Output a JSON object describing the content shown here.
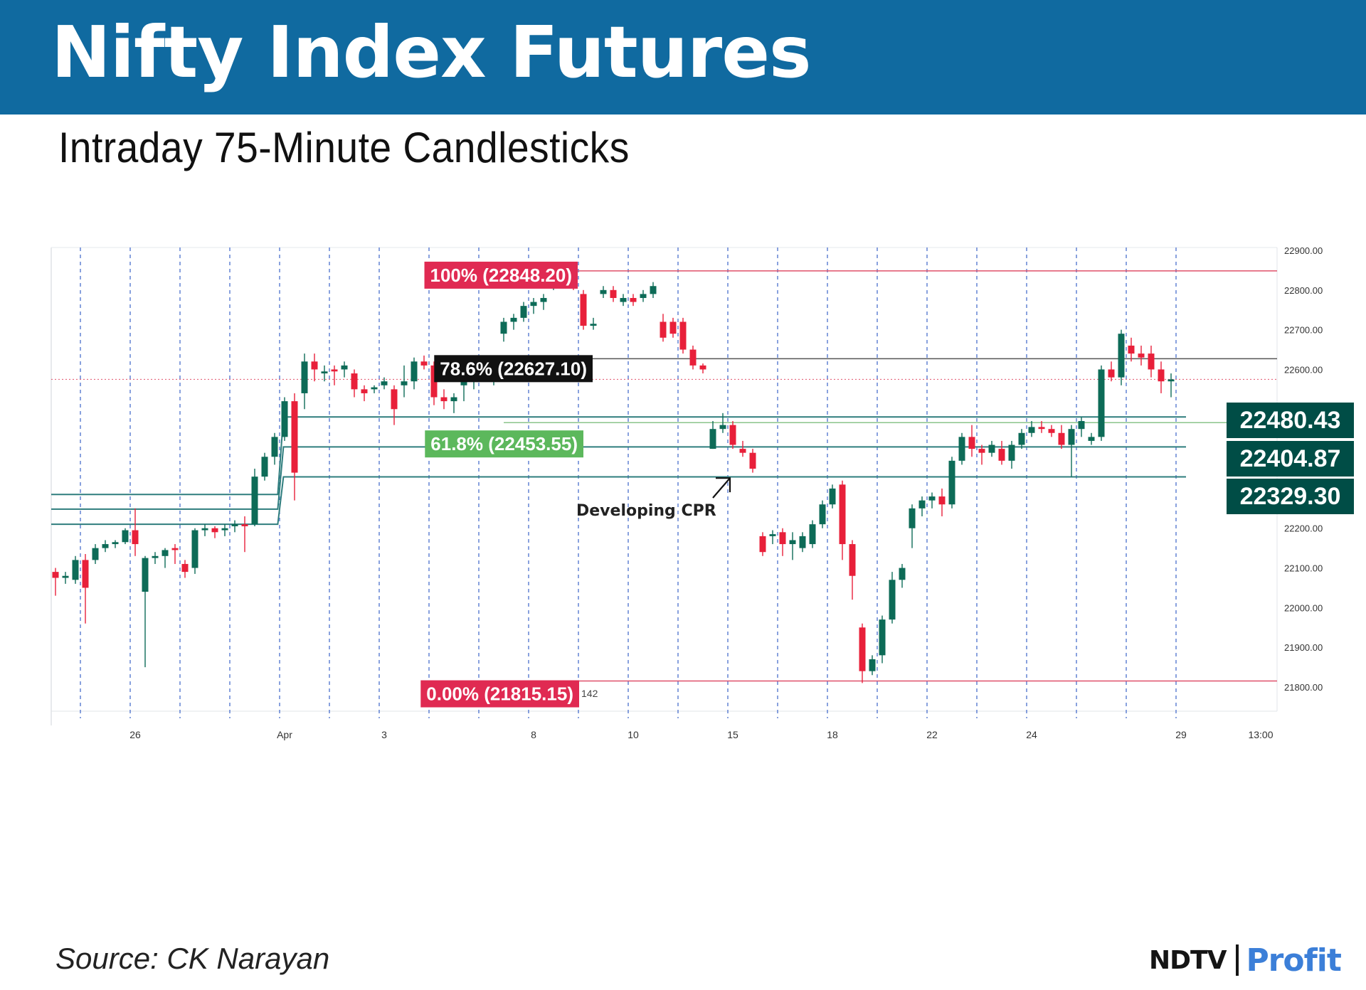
{
  "header": {
    "title": "Nifty Index Futures"
  },
  "subtitle": "Intraday 75-Minute Candlesticks",
  "source": "Source: CK Narayan",
  "brand": {
    "name": "NDTV",
    "product": "Profit"
  },
  "chart_data": {
    "type": "candlestick",
    "title": "Nifty Index Futures",
    "subtitle": "Intraday 75-Minute Candlesticks",
    "ylim": [
      21760,
      22910
    ],
    "y_ticks": [
      22900,
      22800,
      22700,
      22600,
      22500,
      22400,
      22300,
      22200,
      22100,
      22000,
      21900,
      21800
    ],
    "y_tick_labels": [
      "22900.00",
      "22800.00",
      "22700.00",
      "22600.00",
      "",
      "",
      "",
      "22200.00",
      "22100.00",
      "22000.00",
      "21900.00",
      "21800.00"
    ],
    "x_tick_labels": [
      {
        "label": "26",
        "index": 8
      },
      {
        "label": "Apr",
        "index": 23
      },
      {
        "label": "3",
        "index": 33
      },
      {
        "label": "8",
        "index": 48
      },
      {
        "label": "10",
        "index": 58
      },
      {
        "label": "15",
        "index": 68
      },
      {
        "label": "18",
        "index": 78
      },
      {
        "label": "22",
        "index": 88
      },
      {
        "label": "24",
        "index": 98
      },
      {
        "label": "29",
        "index": 113
      },
      {
        "label": "13:00",
        "index": 121
      }
    ],
    "grid": "vertical dashed session separators",
    "session_separators": [
      3,
      8,
      13,
      18,
      23,
      28,
      33,
      38,
      43,
      48,
      53,
      58,
      63,
      68,
      73,
      78,
      83,
      88,
      93,
      98,
      103,
      108,
      113
    ],
    "colors": {
      "up": "#0d6b57",
      "down": "#e8203a",
      "fib_line": "#e0506a",
      "cpr": "#2e7d7d",
      "label_dark": "#004d46"
    },
    "candles": [
      [
        22090,
        22100,
        22030,
        22075
      ],
      [
        22075,
        22090,
        22060,
        22080
      ],
      [
        22070,
        22130,
        22060,
        22120
      ],
      [
        22120,
        22135,
        21960,
        22050
      ],
      [
        22120,
        22160,
        22110,
        22150
      ],
      [
        22150,
        22170,
        22140,
        22160
      ],
      [
        22160,
        22170,
        22150,
        22165
      ],
      [
        22165,
        22200,
        22160,
        22195
      ],
      [
        22195,
        22250,
        22130,
        22160
      ],
      [
        22040,
        22130,
        21850,
        22125
      ],
      [
        22125,
        22140,
        22110,
        22130
      ],
      [
        22130,
        22150,
        22100,
        22145
      ],
      [
        22150,
        22160,
        22110,
        22145
      ],
      [
        22110,
        22120,
        22075,
        22090
      ],
      [
        22100,
        22200,
        22085,
        22195
      ],
      [
        22195,
        22210,
        22180,
        22200
      ],
      [
        22200,
        22205,
        22175,
        22190
      ],
      [
        22195,
        22210,
        22180,
        22200
      ],
      [
        22205,
        22220,
        22190,
        22210
      ],
      [
        22210,
        22230,
        22140,
        22205
      ],
      [
        22210,
        22350,
        22205,
        22330
      ],
      [
        22330,
        22390,
        22320,
        22380
      ],
      [
        22380,
        22440,
        22360,
        22430
      ],
      [
        22430,
        22530,
        22420,
        22520
      ],
      [
        22520,
        22540,
        22270,
        22340
      ],
      [
        22540,
        22640,
        22500,
        22620
      ],
      [
        22620,
        22640,
        22570,
        22600
      ],
      [
        22590,
        22610,
        22570,
        22595
      ],
      [
        22600,
        22610,
        22560,
        22595
      ],
      [
        22600,
        22620,
        22580,
        22610
      ],
      [
        22590,
        22600,
        22530,
        22550
      ],
      [
        22550,
        22560,
        22520,
        22540
      ],
      [
        22550,
        22560,
        22540,
        22555
      ],
      [
        22560,
        22580,
        22550,
        22570
      ],
      [
        22550,
        22560,
        22460,
        22500
      ],
      [
        22560,
        22610,
        22530,
        22570
      ],
      [
        22570,
        22630,
        22550,
        22620
      ],
      [
        22620,
        22635,
        22600,
        22610
      ],
      [
        22610,
        22620,
        22510,
        22530
      ],
      [
        22530,
        22550,
        22500,
        22520
      ],
      [
        22520,
        22540,
        22490,
        22530
      ],
      [
        22560,
        22580,
        22520,
        22570
      ],
      [
        22570,
        22610,
        22550,
        22590
      ],
      [
        22590,
        22610,
        22570,
        22600
      ],
      [
        22600,
        22620,
        22560,
        22610
      ],
      [
        22690,
        22730,
        22670,
        22720
      ],
      [
        22720,
        22740,
        22700,
        22730
      ],
      [
        22730,
        22770,
        22720,
        22760
      ],
      [
        22760,
        22780,
        22740,
        22770
      ],
      [
        22770,
        22790,
        22750,
        22780
      ],
      [
        22820,
        22840,
        22800,
        22830
      ],
      [
        22830,
        22850,
        22810,
        22830
      ],
      [
        22840,
        22850,
        22800,
        22830
      ],
      [
        22790,
        22800,
        22700,
        22710
      ],
      [
        22710,
        22730,
        22700,
        22715
      ],
      [
        22790,
        22810,
        22780,
        22800
      ],
      [
        22800,
        22810,
        22770,
        22780
      ],
      [
        22770,
        22790,
        22760,
        22780
      ],
      [
        22780,
        22790,
        22760,
        22770
      ],
      [
        22780,
        22800,
        22770,
        22790
      ],
      [
        22790,
        22820,
        22780,
        22810
      ],
      [
        22720,
        22740,
        22670,
        22680
      ],
      [
        22720,
        22730,
        22680,
        22690
      ],
      [
        22720,
        22730,
        22640,
        22650
      ],
      [
        22650,
        22660,
        22600,
        22610
      ],
      [
        22610,
        22615,
        22590,
        22600
      ],
      [
        22400,
        22470,
        22400,
        22450
      ],
      [
        22450,
        22490,
        22440,
        22460
      ],
      [
        22460,
        22470,
        22400,
        22410
      ],
      [
        22400,
        22420,
        22380,
        22390
      ],
      [
        22390,
        22400,
        22340,
        22350
      ],
      [
        22180,
        22190,
        22130,
        22140
      ],
      [
        22180,
        22195,
        22160,
        22185
      ],
      [
        22190,
        22200,
        22130,
        22160
      ],
      [
        22160,
        22190,
        22120,
        22170
      ],
      [
        22150,
        22190,
        22140,
        22180
      ],
      [
        22160,
        22220,
        22150,
        22210
      ],
      [
        22210,
        22270,
        22200,
        22260
      ],
      [
        22260,
        22310,
        22250,
        22300
      ],
      [
        22310,
        22320,
        22120,
        22160
      ],
      [
        22160,
        22170,
        22020,
        22080
      ],
      [
        21950,
        21960,
        21810,
        21840
      ],
      [
        21840,
        21880,
        21830,
        21870
      ],
      [
        21880,
        21980,
        21860,
        21970
      ],
      [
        21970,
        22090,
        21960,
        22070
      ],
      [
        22070,
        22110,
        22050,
        22100
      ],
      [
        22200,
        22260,
        22150,
        22250
      ],
      [
        22250,
        22280,
        22230,
        22270
      ],
      [
        22270,
        22290,
        22250,
        22280
      ],
      [
        22280,
        22300,
        22230,
        22260
      ],
      [
        22260,
        22380,
        22250,
        22370
      ],
      [
        22370,
        22440,
        22360,
        22430
      ],
      [
        22430,
        22460,
        22380,
        22400
      ],
      [
        22400,
        22410,
        22360,
        22390
      ],
      [
        22390,
        22420,
        22380,
        22410
      ],
      [
        22400,
        22420,
        22360,
        22370
      ],
      [
        22370,
        22420,
        22350,
        22410
      ],
      [
        22410,
        22450,
        22400,
        22440
      ],
      [
        22440,
        22470,
        22430,
        22455
      ],
      [
        22455,
        22470,
        22440,
        22450
      ],
      [
        22450,
        22460,
        22430,
        22440
      ],
      [
        22440,
        22460,
        22400,
        22410
      ],
      [
        22410,
        22460,
        22330,
        22450
      ],
      [
        22450,
        22480,
        22430,
        22470
      ],
      [
        22420,
        22440,
        22410,
        22430
      ],
      [
        22430,
        22610,
        22420,
        22600
      ],
      [
        22600,
        22620,
        22570,
        22580
      ],
      [
        22580,
        22700,
        22560,
        22690
      ],
      [
        22660,
        22680,
        22620,
        22640
      ],
      [
        22640,
        22660,
        22610,
        22630
      ],
      [
        22640,
        22660,
        22580,
        22600
      ],
      [
        22600,
        22620,
        22540,
        22570
      ],
      [
        22570,
        22590,
        22530,
        22575
      ]
    ],
    "levels": [
      {
        "label": "100% (22848.20)",
        "value": 22848.2,
        "kind": "fib"
      },
      {
        "label": "78.6% (22627.10)",
        "value": 22627.1,
        "kind": "fib"
      },
      {
        "label": "61.8% (22453.55)",
        "value": 22453.55,
        "kind": "fib"
      },
      {
        "label": "0.00% (21815.15)",
        "value": 21815.15,
        "kind": "fib"
      }
    ],
    "cpr_labels": [
      "22480.43",
      "22404.87",
      "22329.30"
    ],
    "cpr_levels": [
      22480.43,
      22404.87,
      22329.3
    ],
    "prior_cpr_levels": [
      22285,
      22248,
      22210
    ],
    "current_price": 22575,
    "annotations": [
      {
        "text": "Developing CPR",
        "arrow_to_index": 68,
        "arrow_to_value": 22330
      },
      {
        "text": "142",
        "near": "0.00% level"
      }
    ]
  }
}
